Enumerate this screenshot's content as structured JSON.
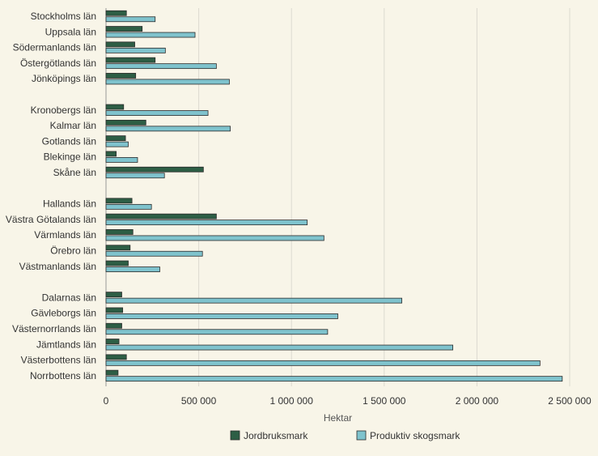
{
  "chart_data": {
    "type": "bar",
    "orientation": "horizontal",
    "categories": [
      "Stockholms län",
      "Uppsala län",
      "Södermanlands län",
      "Östergötlands län",
      "Jönköpings län",
      "Kronobergs län",
      "Kalmar län",
      "Gotlands län",
      "Blekinge län",
      "Skåne län",
      "Hallands län",
      "Västra Götalands län",
      "Värmlands län",
      "Örebro län",
      "Västmanlands län",
      "Dalarnas län",
      "Gävleborgs län",
      "Västernorrlands län",
      "Jämtlands län",
      "Västerbottens län",
      "Norrbottens län"
    ],
    "groups": [
      5,
      5,
      5,
      6
    ],
    "series": [
      {
        "name": "Jordbruksmark",
        "color": "#2d5e45",
        "values": [
          110000,
          195000,
          155000,
          265000,
          160000,
          95000,
          215000,
          105000,
          55000,
          525000,
          140000,
          595000,
          145000,
          130000,
          120000,
          85000,
          90000,
          85000,
          70000,
          110000,
          65000
        ]
      },
      {
        "name": "Produktiv skogsmark",
        "color": "#7fc3cd",
        "values": [
          265000,
          480000,
          320000,
          595000,
          665000,
          550000,
          670000,
          120000,
          170000,
          315000,
          245000,
          1085000,
          1175000,
          520000,
          290000,
          1595000,
          1250000,
          1195000,
          1870000,
          2340000,
          2460000
        ]
      }
    ],
    "xlabel": "Hektar",
    "xlim": [
      0,
      2500000
    ],
    "xticks": [
      0,
      500000,
      1000000,
      1500000,
      2000000,
      2500000
    ],
    "xtick_labels": [
      "0",
      "500 000",
      "1 000 000",
      "1 500 000",
      "2 000 000",
      "2 500 000"
    ],
    "grid": true,
    "legend_position": "bottom"
  }
}
